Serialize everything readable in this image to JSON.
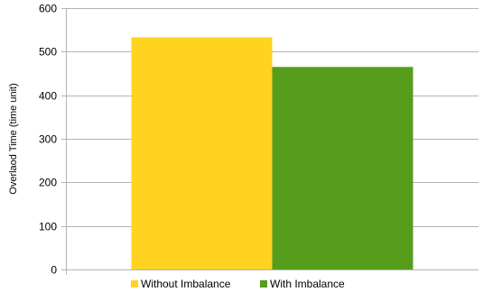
{
  "chart_data": {
    "type": "bar",
    "title": "",
    "xlabel": "",
    "ylabel": "Overlaod Time (time unit)",
    "ylim": [
      0,
      600
    ],
    "yticks": [
      0,
      100,
      200,
      300,
      400,
      500,
      600
    ],
    "grid": true,
    "legend_position": "bottom",
    "series": [
      {
        "name": "Without Imbalance",
        "value": 533,
        "color": "#ffd320"
      },
      {
        "name": "With Imbalance",
        "value": 465,
        "color": "#579d1c"
      }
    ]
  }
}
